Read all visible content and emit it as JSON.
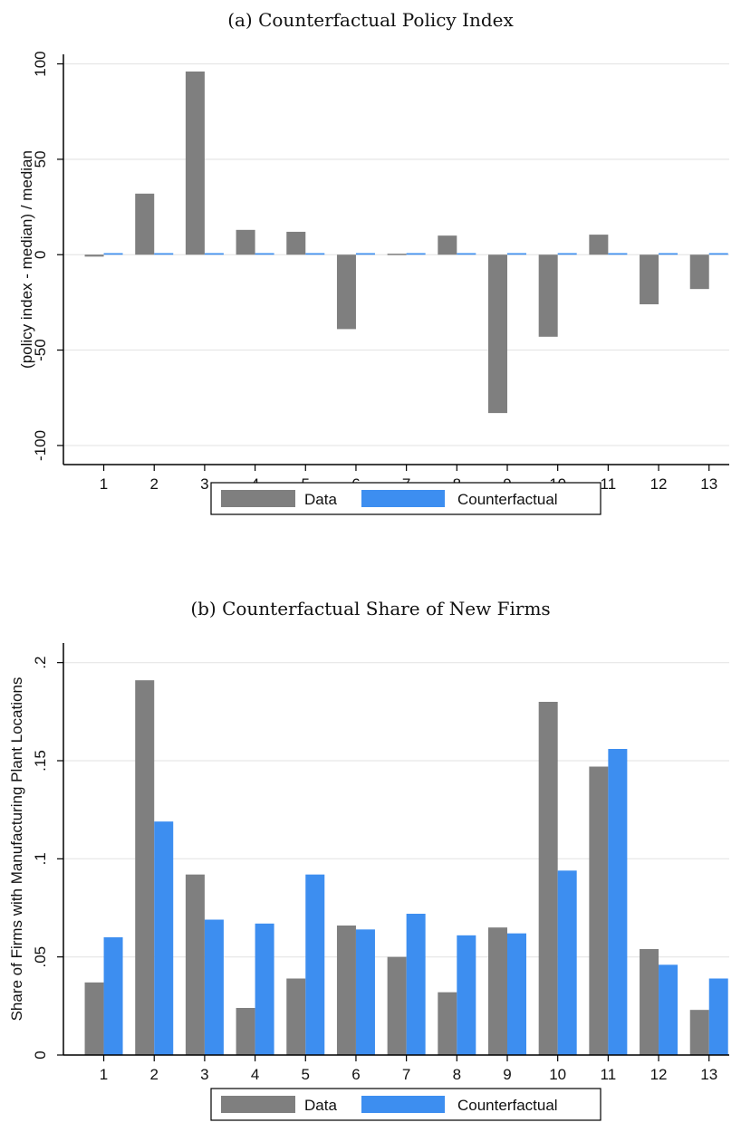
{
  "chart_data": [
    {
      "type": "bar",
      "title": "(a) Counterfactual Policy Index",
      "ylabel": "(policy index - median) / median",
      "xlabel": "",
      "categories": [
        "1",
        "2",
        "3",
        "4",
        "5",
        "6",
        "7",
        "8",
        "9",
        "10",
        "11",
        "12",
        "13"
      ],
      "ylim": [
        -110,
        105
      ],
      "yticks": [
        100,
        50,
        0,
        -50,
        -100
      ],
      "ytick_labels": [
        "100",
        "50",
        "0",
        "-50",
        "-100"
      ],
      "grid": true,
      "legend_position": "bottom",
      "colors": {
        "Data": "#7f7f7f",
        "Counterfactual": "#3d8ef0"
      },
      "series": [
        {
          "name": "Data",
          "values": [
            -1,
            32,
            96,
            13,
            12,
            -39,
            0.5,
            10,
            -83,
            -43,
            10.5,
            -26,
            -18
          ]
        },
        {
          "name": "Counterfactual",
          "values": [
            0.8,
            0.8,
            0.8,
            0.8,
            0.8,
            0.8,
            0.8,
            0.8,
            0.8,
            0.8,
            0.8,
            0.8,
            0.8
          ]
        }
      ]
    },
    {
      "type": "bar",
      "title": "(b) Counterfactual Share of New Firms",
      "ylabel": "Share of Firms with Manufacturing Plant Locations",
      "xlabel": "",
      "categories": [
        "1",
        "2",
        "3",
        "4",
        "5",
        "6",
        "7",
        "8",
        "9",
        "10",
        "11",
        "12",
        "13"
      ],
      "ylim": [
        0,
        0.21
      ],
      "yticks": [
        0,
        0.05,
        0.1,
        0.15,
        0.2
      ],
      "ytick_labels": [
        "0",
        ".05",
        ".1",
        ".15",
        ".2"
      ],
      "grid": true,
      "legend_position": "bottom",
      "colors": {
        "Data": "#7f7f7f",
        "Counterfactual": "#3d8ef0"
      },
      "series": [
        {
          "name": "Data",
          "values": [
            0.037,
            0.191,
            0.092,
            0.024,
            0.039,
            0.066,
            0.05,
            0.032,
            0.065,
            0.18,
            0.147,
            0.054,
            0.023
          ]
        },
        {
          "name": "Counterfactual",
          "values": [
            0.06,
            0.119,
            0.069,
            0.067,
            0.092,
            0.064,
            0.072,
            0.061,
            0.062,
            0.094,
            0.156,
            0.046,
            0.039
          ]
        }
      ]
    }
  ]
}
